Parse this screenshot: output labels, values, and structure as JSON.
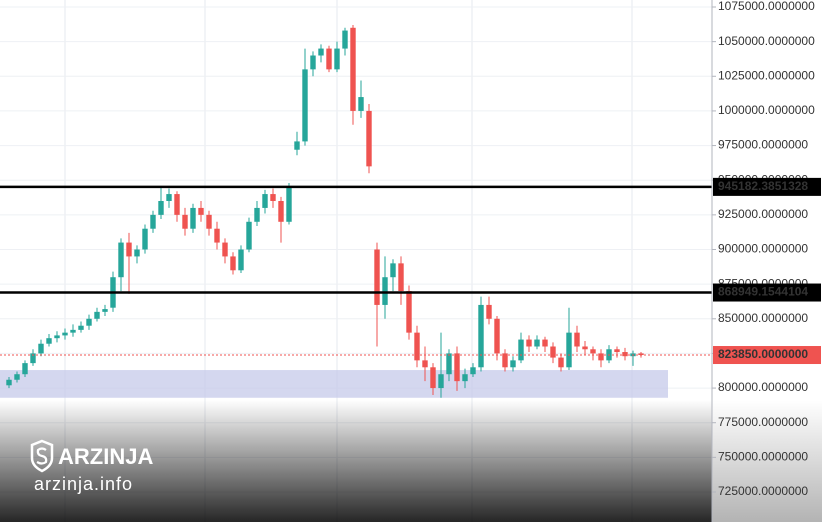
{
  "chart_data": {
    "type": "candlestick",
    "up_color": "#26a69a",
    "down_color": "#ef5350",
    "open": [
      802000,
      806000,
      810000,
      818000,
      825000,
      832000,
      836000,
      838000,
      840000,
      842000,
      845000,
      850000,
      855000,
      858000,
      880000,
      905000,
      895000,
      900000,
      915000,
      925000,
      935000,
      940000,
      925000,
      915000,
      930000,
      925000,
      915000,
      905000,
      895000,
      885000,
      900000,
      920000,
      930000,
      940000,
      935000,
      920000,
      972000,
      978000,
      1030000,
      1040000,
      1045000,
      1030000,
      1045000,
      1060000,
      1000000,
      1000000,
      900000,
      860000,
      880000,
      890000,
      870000,
      840000,
      820000,
      815000,
      800000,
      810000,
      825000,
      805000,
      810000,
      815000,
      860000,
      850000,
      825000,
      815000,
      820000,
      835000,
      830000,
      835000,
      830000,
      822000,
      815000,
      840000,
      830000,
      828000,
      825000,
      820000,
      828000,
      826000,
      823000,
      825000
    ],
    "high": [
      808000,
      812000,
      820000,
      828000,
      835000,
      839000,
      841000,
      843000,
      846000,
      848000,
      853000,
      858000,
      860000,
      884000,
      908000,
      912000,
      903000,
      918000,
      928000,
      945000,
      944000,
      942000,
      930000,
      933000,
      935000,
      928000,
      920000,
      908000,
      898000,
      903000,
      923000,
      935000,
      943000,
      944000,
      938000,
      948000,
      985000,
      1045000,
      1043000,
      1048000,
      1047000,
      1050000,
      1060000,
      1062000,
      1022000,
      1005000,
      905000,
      895000,
      893000,
      895000,
      874000,
      845000,
      830000,
      818000,
      840000,
      828000,
      830000,
      814000,
      818000,
      866000,
      866000,
      852000,
      828000,
      823000,
      840000,
      838000,
      838000,
      837000,
      833000,
      825000,
      858000,
      845000,
      834000,
      830000,
      828000,
      831000,
      830000,
      829000,
      827000,
      826000
    ],
    "low": [
      800000,
      804000,
      808000,
      816000,
      823000,
      830000,
      833000,
      835000,
      837000,
      840000,
      842000,
      848000,
      852000,
      855000,
      870000,
      868000,
      890000,
      897000,
      912000,
      922000,
      930000,
      920000,
      910000,
      912000,
      920000,
      910000,
      900000,
      890000,
      882000,
      883000,
      898000,
      917000,
      926000,
      930000,
      905000,
      918000,
      968000,
      975000,
      1025000,
      1035000,
      1028000,
      1028000,
      1040000,
      990000,
      995000,
      955000,
      830000,
      850000,
      870000,
      860000,
      835000,
      815000,
      805000,
      795000,
      793000,
      805000,
      798000,
      800000,
      808000,
      812000,
      846000,
      820000,
      812000,
      812000,
      818000,
      826000,
      828000,
      826000,
      818000,
      812000,
      813000,
      826000,
      824000,
      820000,
      815000,
      818000,
      822000,
      820000,
      816000,
      822000
    ],
    "close": [
      806000,
      810000,
      818000,
      825000,
      832000,
      836000,
      838000,
      840000,
      842000,
      845000,
      850000,
      855000,
      857000,
      880000,
      905000,
      895000,
      900000,
      915000,
      925000,
      935000,
      940000,
      925000,
      915000,
      930000,
      925000,
      915000,
      905000,
      895000,
      885000,
      900000,
      920000,
      930000,
      940000,
      935000,
      920000,
      945000,
      978000,
      1030000,
      1040000,
      1045000,
      1030000,
      1045000,
      1058000,
      1000000,
      1010000,
      960000,
      860000,
      880000,
      890000,
      870000,
      840000,
      820000,
      815000,
      800000,
      810000,
      825000,
      805000,
      810000,
      815000,
      860000,
      850000,
      825000,
      815000,
      820000,
      835000,
      830000,
      835000,
      830000,
      822000,
      815000,
      840000,
      830000,
      828000,
      825000,
      820000,
      828000,
      826000,
      823000,
      825000,
      823850
    ],
    "ylim": [
      703350,
      1080050
    ],
    "yticks": [
      {
        "value": 725000,
        "label": "725000.0000000"
      },
      {
        "value": 750000,
        "label": "750000.0000000"
      },
      {
        "value": 775000,
        "label": "775000.0000000"
      },
      {
        "value": 800000,
        "label": "800000.0000000"
      },
      {
        "value": 825000,
        "label": "825000.0000000"
      },
      {
        "value": 850000,
        "label": "850000.0000000"
      },
      {
        "value": 875000,
        "label": "875000.0000000"
      },
      {
        "value": 900000,
        "label": "900000.0000000"
      },
      {
        "value": 925000,
        "label": "925000.0000000"
      },
      {
        "value": 950000,
        "label": "950000.0000000"
      },
      {
        "value": 975000,
        "label": "975000.0000000"
      },
      {
        "value": 1000000,
        "label": "1000000.0000000"
      },
      {
        "value": 1025000,
        "label": "1025000.0000000"
      },
      {
        "value": 1050000,
        "label": "1050000.0000000"
      },
      {
        "value": 1075000,
        "label": "1075000.0000000"
      }
    ],
    "levels": [
      945182.3851328,
      868949.1544104
    ],
    "level_color": "#000000",
    "last_price": {
      "value": 823850,
      "label": "823850.0000000"
    },
    "last_price_color": "#ef5350",
    "zone": [
      793000,
      813000
    ],
    "zone_color": "#c5cae9",
    "grid": true
  },
  "watermark": {
    "brand": "ARZINJA",
    "site": "arzinja.info"
  }
}
